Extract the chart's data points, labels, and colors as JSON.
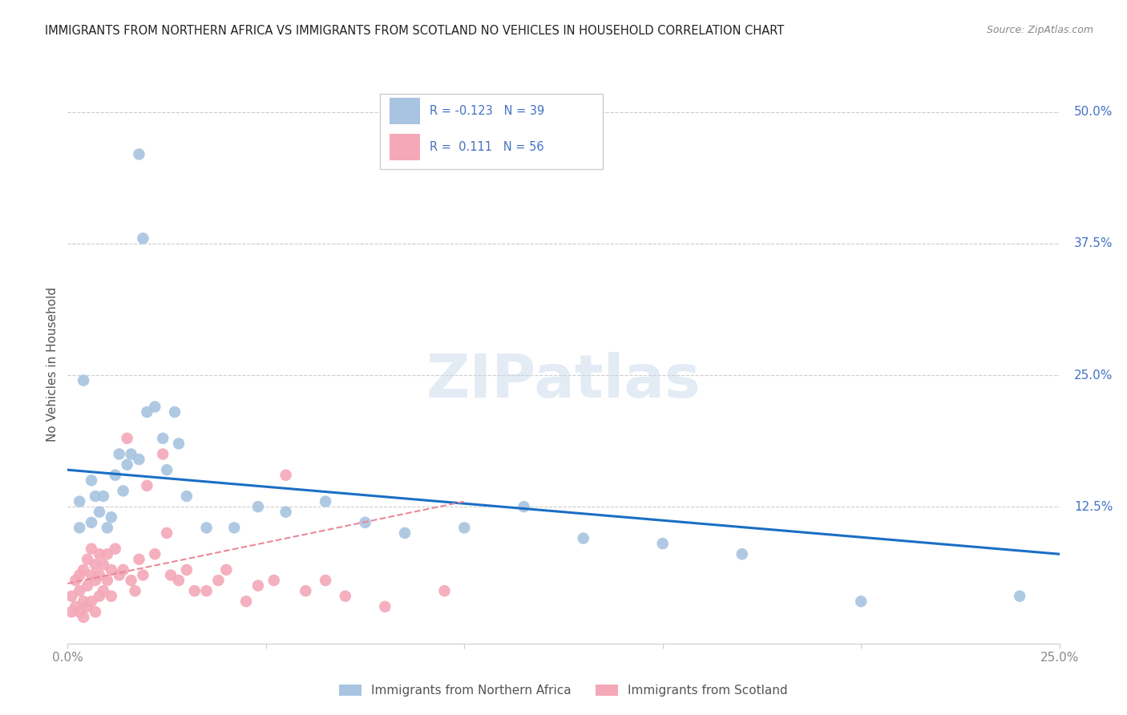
{
  "title": "IMMIGRANTS FROM NORTHERN AFRICA VS IMMIGRANTS FROM SCOTLAND NO VEHICLES IN HOUSEHOLD CORRELATION CHART",
  "source": "Source: ZipAtlas.com",
  "ylabel": "No Vehicles in Household",
  "right_yticks": [
    "50.0%",
    "37.5%",
    "25.0%",
    "12.5%"
  ],
  "right_ytick_vals": [
    0.5,
    0.375,
    0.25,
    0.125
  ],
  "xlim": [
    0.0,
    0.25
  ],
  "ylim": [
    -0.005,
    0.525
  ],
  "blue_label": "Immigrants from Northern Africa",
  "pink_label": "Immigrants from Scotland",
  "blue_R": "R = -0.123",
  "blue_N": "N = 39",
  "pink_R": "R =  0.111",
  "pink_N": "N = 56",
  "blue_color": "#a8c4e0",
  "pink_color": "#f4a8b8",
  "blue_line_color": "#1a6fc4",
  "pink_line_color": "#e8899a",
  "legend_text_color": "#4472c4",
  "watermark": "ZIPatlas",
  "title_color": "#222222",
  "source_color": "#888888",
  "ylabel_color": "#555555",
  "xtick_color": "#888888",
  "grid_color": "#cccccc",
  "blue_scatter_x": [
    0.004,
    0.003,
    0.003,
    0.006,
    0.006,
    0.007,
    0.008,
    0.009,
    0.01,
    0.011,
    0.012,
    0.013,
    0.014,
    0.015,
    0.016,
    0.018,
    0.018,
    0.019,
    0.02,
    0.022,
    0.024,
    0.025,
    0.027,
    0.028,
    0.03,
    0.035,
    0.042,
    0.048,
    0.055,
    0.065,
    0.075,
    0.085,
    0.1,
    0.115,
    0.13,
    0.15,
    0.17,
    0.2,
    0.24
  ],
  "blue_scatter_y": [
    0.245,
    0.13,
    0.105,
    0.15,
    0.11,
    0.135,
    0.12,
    0.135,
    0.105,
    0.115,
    0.155,
    0.175,
    0.14,
    0.165,
    0.175,
    0.46,
    0.17,
    0.38,
    0.215,
    0.22,
    0.19,
    0.16,
    0.215,
    0.185,
    0.135,
    0.105,
    0.105,
    0.125,
    0.12,
    0.13,
    0.11,
    0.1,
    0.105,
    0.125,
    0.095,
    0.09,
    0.08,
    0.035,
    0.04
  ],
  "pink_scatter_x": [
    0.001,
    0.001,
    0.002,
    0.002,
    0.003,
    0.003,
    0.003,
    0.004,
    0.004,
    0.004,
    0.005,
    0.005,
    0.005,
    0.006,
    0.006,
    0.006,
    0.007,
    0.007,
    0.007,
    0.008,
    0.008,
    0.008,
    0.009,
    0.009,
    0.01,
    0.01,
    0.011,
    0.011,
    0.012,
    0.013,
    0.014,
    0.015,
    0.016,
    0.017,
    0.018,
    0.019,
    0.02,
    0.022,
    0.024,
    0.025,
    0.026,
    0.028,
    0.03,
    0.032,
    0.035,
    0.038,
    0.04,
    0.045,
    0.048,
    0.052,
    0.055,
    0.06,
    0.065,
    0.07,
    0.08,
    0.095
  ],
  "pink_scatter_y": [
    0.04,
    0.025,
    0.055,
    0.03,
    0.06,
    0.045,
    0.025,
    0.065,
    0.035,
    0.02,
    0.075,
    0.05,
    0.03,
    0.085,
    0.06,
    0.035,
    0.07,
    0.055,
    0.025,
    0.08,
    0.06,
    0.04,
    0.07,
    0.045,
    0.08,
    0.055,
    0.065,
    0.04,
    0.085,
    0.06,
    0.065,
    0.19,
    0.055,
    0.045,
    0.075,
    0.06,
    0.145,
    0.08,
    0.175,
    0.1,
    0.06,
    0.055,
    0.065,
    0.045,
    0.045,
    0.055,
    0.065,
    0.035,
    0.05,
    0.055,
    0.155,
    0.045,
    0.055,
    0.04,
    0.03,
    0.045
  ],
  "blue_trend_x0": 0.0,
  "blue_trend_x1": 0.25,
  "blue_trend_y0": 0.16,
  "blue_trend_y1": 0.08,
  "pink_trend_x0": 0.0,
  "pink_trend_x1": 0.1,
  "pink_trend_y0": 0.052,
  "pink_trend_y1": 0.13
}
